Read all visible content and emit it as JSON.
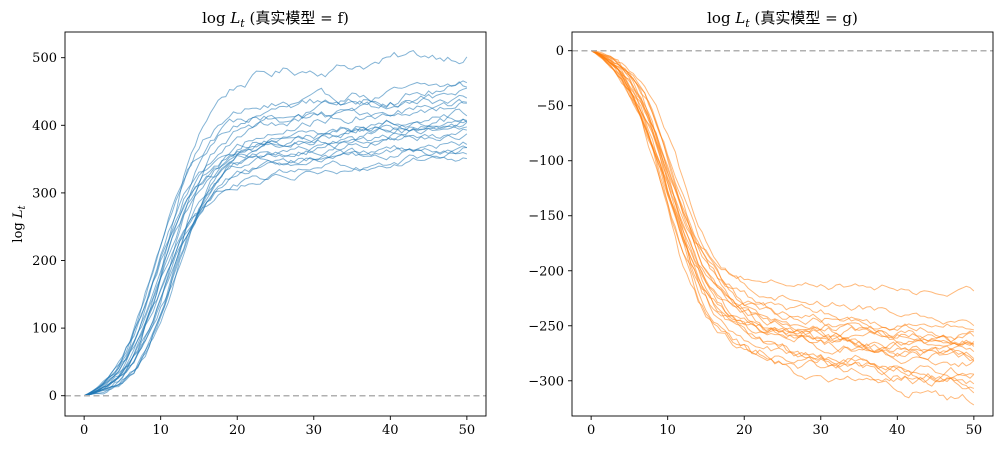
{
  "chart_data": [
    {
      "type": "line",
      "title": "log L_t (真实模型 = f)",
      "title_main": "log ",
      "title_var": "L",
      "title_sub": "t",
      "title_rest": " (真实模型 = f)",
      "ylabel_main": "log ",
      "ylabel_var": "L",
      "ylabel_sub": "t",
      "xlim": [
        -2.5,
        52.5
      ],
      "ylim": [
        -30,
        538
      ],
      "xticks": [
        0,
        10,
        20,
        30,
        40,
        50
      ],
      "yticks": [
        0,
        100,
        200,
        300,
        400,
        500
      ],
      "reference_line": {
        "y": 0,
        "style": "dashed",
        "color": "#b0b0b0"
      },
      "color": "#1f77b4",
      "line_alpha": 0.55,
      "grid": false,
      "legend": "none",
      "num_series": 20,
      "series_final_values": [
        508,
        458,
        455,
        444,
        440,
        437,
        432,
        418,
        415,
        411,
        408,
        402,
        397,
        390,
        389,
        372,
        369,
        365,
        360,
        356
      ],
      "series_representative": {
        "x": [
          0,
          1,
          2,
          3,
          4,
          5,
          6,
          7,
          8,
          9,
          10,
          11,
          12,
          13,
          14,
          15,
          16,
          17,
          18,
          19,
          20,
          25,
          30,
          35,
          40,
          45,
          50
        ],
        "y": [
          0,
          2,
          7,
          18,
          35,
          55,
          80,
          105,
          130,
          158,
          185,
          215,
          245,
          275,
          300,
          322,
          340,
          355,
          365,
          372,
          378,
          388,
          395,
          405,
          412,
          415,
          415
        ]
      }
    },
    {
      "type": "line",
      "title": "log L_t (真实模型 = g)",
      "title_main": "log ",
      "title_var": "L",
      "title_sub": "t",
      "title_rest": " (真实模型 = g)",
      "xlim": [
        -2.5,
        52.5
      ],
      "ylim": [
        -332,
        17
      ],
      "xticks": [
        0,
        10,
        20,
        30,
        40,
        50
      ],
      "yticks": [
        0,
        -50,
        -100,
        -150,
        -200,
        -250,
        -300
      ],
      "reference_line": {
        "y": 0,
        "style": "dashed",
        "color": "#b0b0b0"
      },
      "color": "#ff7f0e",
      "line_alpha": 0.55,
      "grid": false,
      "legend": "none",
      "num_series": 20,
      "series_final_values": [
        -222,
        -243,
        -253,
        -256,
        -260,
        -263,
        -266,
        -269,
        -272,
        -275,
        -277,
        -279,
        -281,
        -286,
        -290,
        -294,
        -298,
        -301,
        -303,
        -316
      ],
      "series_representative": {
        "x": [
          0,
          1,
          2,
          3,
          4,
          5,
          6,
          7,
          8,
          9,
          10,
          11,
          12,
          13,
          14,
          15,
          16,
          17,
          18,
          19,
          20,
          25,
          30,
          35,
          40,
          45,
          50
        ],
        "y": [
          0,
          0,
          -1,
          -4,
          -12,
          -25,
          -42,
          -62,
          -85,
          -108,
          -132,
          -155,
          -178,
          -198,
          -215,
          -230,
          -242,
          -252,
          -259,
          -264,
          -267,
          -270,
          -271,
          -271,
          -272,
          -272,
          -272
        ]
      }
    }
  ]
}
